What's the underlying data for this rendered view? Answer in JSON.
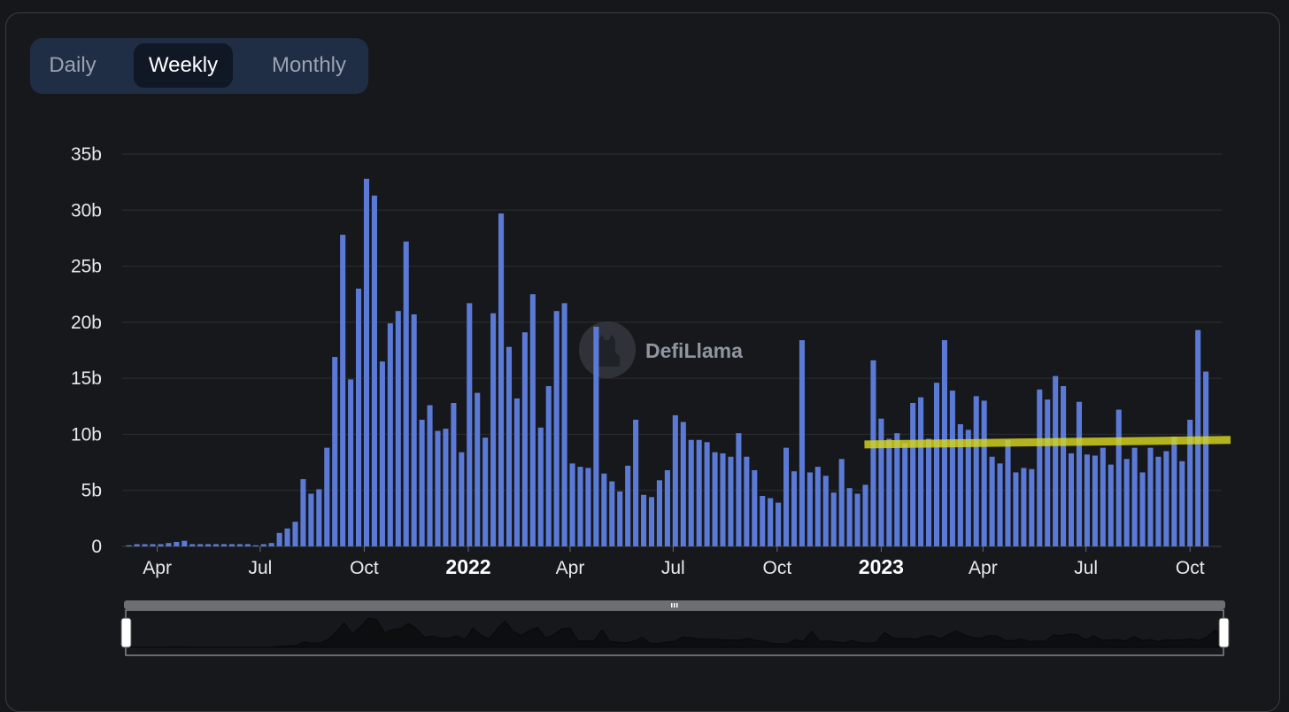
{
  "toggle": {
    "options": [
      "Daily",
      "Weekly",
      "Monthly"
    ],
    "active": "Weekly"
  },
  "watermark": "DefiLlama",
  "colors": {
    "bar": "#5b7ad6",
    "highlight": "#d6d61e",
    "grid": "#2c2e33",
    "toggle_bg": "#1f2d45",
    "toggle_active": "#101725"
  },
  "chart_data": {
    "type": "bar",
    "title": "",
    "xlabel": "",
    "ylabel": "",
    "y_unit": "b",
    "ylim": [
      0,
      35
    ],
    "y_ticks": [
      "0",
      "5b",
      "10b",
      "15b",
      "20b",
      "25b",
      "30b",
      "35b"
    ],
    "x_ticks": [
      {
        "label": "Apr",
        "bold": false,
        "date": "2021-04-01"
      },
      {
        "label": "Jul",
        "bold": false,
        "date": "2021-07-01"
      },
      {
        "label": "Oct",
        "bold": false,
        "date": "2021-10-01"
      },
      {
        "label": "2022",
        "bold": true,
        "date": "2022-01-01"
      },
      {
        "label": "Apr",
        "bold": false,
        "date": "2022-04-01"
      },
      {
        "label": "Jul",
        "bold": false,
        "date": "2022-07-01"
      },
      {
        "label": "Oct",
        "bold": false,
        "date": "2022-10-01"
      },
      {
        "label": "2023",
        "bold": true,
        "date": "2023-01-01"
      },
      {
        "label": "Apr",
        "bold": false,
        "date": "2023-04-01"
      },
      {
        "label": "Jul",
        "bold": false,
        "date": "2023-07-01"
      },
      {
        "label": "Oct",
        "bold": false,
        "date": "2023-10-01"
      }
    ],
    "grid": true,
    "legend": "none",
    "series": [
      {
        "values": [
          0.1,
          0.2,
          0.2,
          0.2,
          0.2,
          0.3,
          0.4,
          0.5,
          0.2,
          0.2,
          0.2,
          0.2,
          0.2,
          0.2,
          0.2,
          0.2,
          0.1,
          0.2,
          0.3,
          1.2,
          1.6,
          2.2,
          6.0,
          4.7,
          5.1,
          8.8,
          16.9,
          27.8,
          14.9,
          23.0,
          32.8,
          31.3,
          16.5,
          19.9,
          21.0,
          27.2,
          20.7,
          11.3,
          12.6,
          10.3,
          10.5,
          12.8,
          8.4,
          21.7,
          13.7,
          9.7,
          20.8,
          29.7,
          17.8,
          13.2,
          19.1,
          22.5,
          10.6,
          14.3,
          21.0,
          21.7,
          7.4,
          7.1,
          7.0,
          19.6,
          6.5,
          5.8,
          4.9,
          7.2,
          11.3,
          4.6,
          4.4,
          5.9,
          6.8,
          11.7,
          11.1,
          9.5,
          9.5,
          9.3,
          8.4,
          8.3,
          8.0,
          10.1,
          8.0,
          6.8,
          4.5,
          4.3,
          3.9,
          8.8,
          6.7,
          18.4,
          6.6,
          7.1,
          6.3,
          4.8,
          7.8,
          5.2,
          4.7,
          5.5,
          16.6,
          11.4,
          9.6,
          10.1,
          9.2,
          12.8,
          13.3,
          9.6,
          14.6,
          18.4,
          13.9,
          10.9,
          10.4,
          13.4,
          13.0,
          8.0,
          7.4,
          9.5,
          6.6,
          7.0,
          6.9,
          14.0,
          13.1,
          15.2,
          14.3,
          8.3,
          12.9,
          8.2,
          8.1,
          8.8,
          7.3,
          12.2,
          7.8,
          8.8,
          6.6,
          8.8,
          8.0,
          8.5,
          9.8,
          7.6,
          11.3,
          19.3,
          15.6
        ]
      }
    ],
    "x_range": [
      "2021-03-01",
      "2023-10-29"
    ],
    "first_bar_date": "2021-03-07",
    "bar_interval_days": 7,
    "annotation": {
      "type": "highlight-line",
      "from_date": "2022-12-25",
      "to_date": "2023-10-29",
      "y_start": 9.1,
      "y_end": 9.5
    }
  }
}
